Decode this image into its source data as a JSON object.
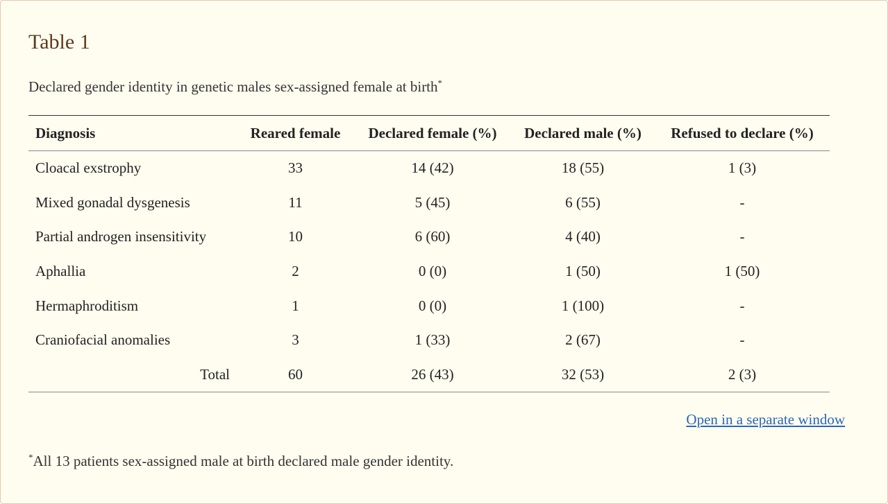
{
  "title": "Table 1",
  "caption": {
    "text": "Declared gender identity in genetic males sex-assigned female at birth",
    "marker": "*"
  },
  "table": {
    "headers": [
      "Diagnosis",
      "Reared female",
      "Declared female (%)",
      "Declared male (%)",
      "Refused to declare (%)"
    ],
    "rows": [
      [
        "Cloacal exstrophy",
        "33",
        "14 (42)",
        "18 (55)",
        "1 (3)"
      ],
      [
        "Mixed gonadal dysgenesis",
        "11",
        "5 (45)",
        "6 (55)",
        "-"
      ],
      [
        "Partial androgen insensitivity",
        "10",
        "6 (60)",
        "4 (40)",
        "-"
      ],
      [
        "Aphallia",
        "2",
        "0 (0)",
        "1 (50)",
        "1 (50)"
      ],
      [
        "Hermaphroditism",
        "1",
        "0 (0)",
        "1 (100)",
        "-"
      ],
      [
        "Craniofacial anomalies",
        "3",
        "1 (33)",
        "2 (67)",
        "-"
      ]
    ],
    "total": [
      "Total",
      "60",
      "26 (43)",
      "32 (53)",
      "2 (3)"
    ]
  },
  "link_label": "Open in a separate window",
  "footnote": {
    "marker": "*",
    "text": "All 13 patients sex-assigned male at birth declared male gender identity."
  },
  "colors": {
    "background": "#fffdf0",
    "title": "#5c3a1e",
    "link": "#2a66b8"
  }
}
